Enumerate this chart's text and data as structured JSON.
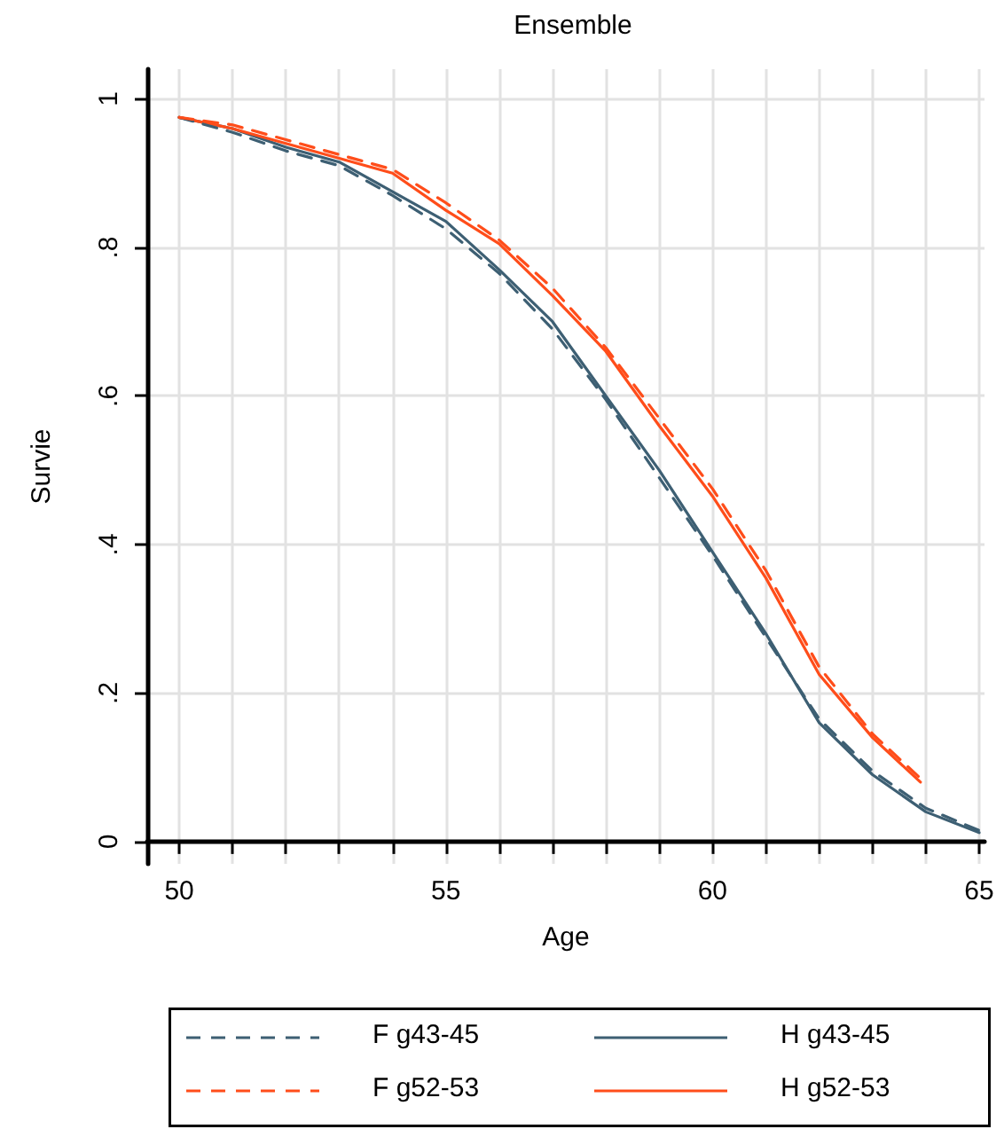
{
  "chart_data": {
    "type": "line",
    "title": "Ensemble",
    "xlabel": "Age",
    "ylabel": "Survie",
    "x": [
      50,
      51,
      52,
      53,
      54,
      55,
      56,
      57,
      58,
      59,
      60,
      61,
      62,
      63,
      64,
      65
    ],
    "xlim": [
      49.4,
      65.1
    ],
    "xticks": [
      50,
      55,
      60,
      65
    ],
    "ylim": [
      -0.03,
      1.04
    ],
    "yticks": [
      {
        "value": 0,
        "label": "0"
      },
      {
        "value": 0.2,
        "label": ".2"
      },
      {
        "value": 0.4,
        "label": ".4"
      },
      {
        "value": 0.6,
        "label": ".6"
      },
      {
        "value": 0.8,
        "label": ".8"
      },
      {
        "value": 1,
        "label": "1"
      }
    ],
    "grid": true,
    "legend": "bottom",
    "marker": "none",
    "series": [
      {
        "name": "F g43-45",
        "color": "#3d5f73",
        "line_style": "dashed",
        "values": [
          0.975,
          0.955,
          0.93,
          0.91,
          0.87,
          0.825,
          0.765,
          0.69,
          0.595,
          0.49,
          0.385,
          0.275,
          0.165,
          0.095,
          0.045,
          0.015
        ]
      },
      {
        "name": "H g43-45",
        "color": "#3d5f73",
        "line_style": "solid",
        "values": [
          0.975,
          0.96,
          0.935,
          0.915,
          0.875,
          0.835,
          0.77,
          0.7,
          0.6,
          0.5,
          0.39,
          0.28,
          0.16,
          0.09,
          0.04,
          0.012
        ]
      },
      {
        "name": "F g52-53",
        "color": "#ff4d1a",
        "line_style": "dashed",
        "x": [
          50,
          51,
          52,
          53,
          54,
          55,
          56,
          57,
          58,
          59,
          60,
          61,
          62,
          63,
          63.9
        ],
        "values": [
          0.975,
          0.965,
          0.945,
          0.925,
          0.905,
          0.86,
          0.81,
          0.745,
          0.665,
          0.57,
          0.475,
          0.365,
          0.235,
          0.145,
          0.085
        ]
      },
      {
        "name": "H g52-53",
        "color": "#ff4d1a",
        "line_style": "solid",
        "x": [
          50,
          51,
          52,
          53,
          54,
          55,
          56,
          57,
          58,
          59,
          60,
          61,
          62,
          63,
          63.9
        ],
        "values": [
          0.975,
          0.96,
          0.94,
          0.92,
          0.9,
          0.85,
          0.805,
          0.735,
          0.66,
          0.56,
          0.465,
          0.355,
          0.225,
          0.14,
          0.08
        ]
      }
    ]
  }
}
